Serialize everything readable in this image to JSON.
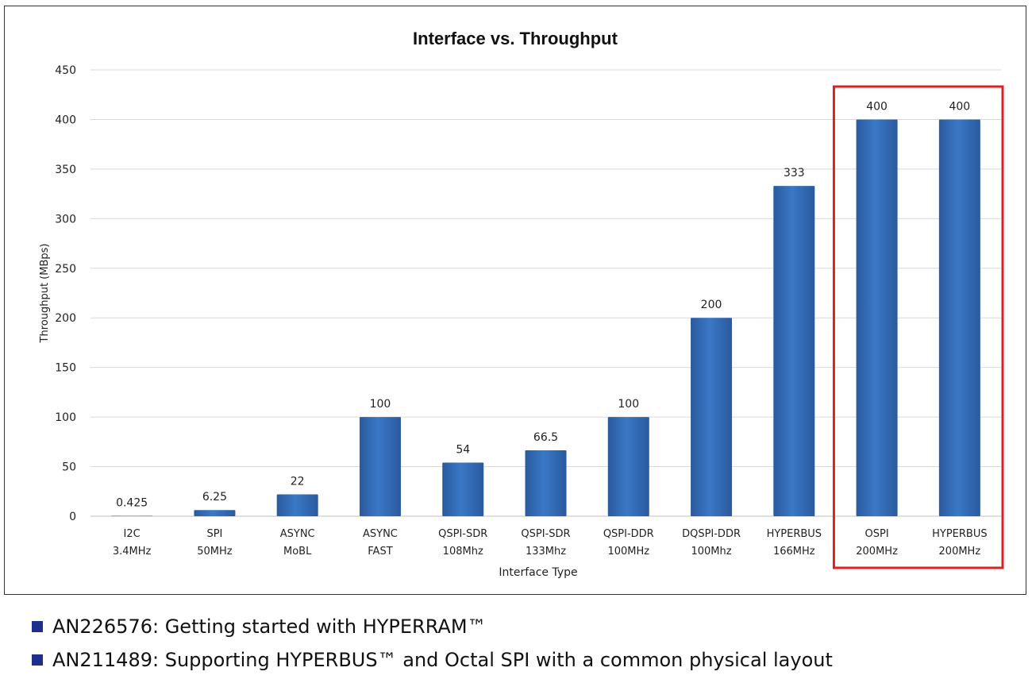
{
  "chart_data": {
    "type": "bar",
    "title": "Interface vs. Throughput",
    "xlabel": "Interface Type",
    "ylabel": "Throughput (MBps)",
    "ylim": [
      0,
      450
    ],
    "yticks": [
      0,
      50,
      100,
      150,
      200,
      250,
      300,
      350,
      400,
      450
    ],
    "grid": true,
    "categories": [
      [
        "I2C",
        "3.4MHz"
      ],
      [
        "SPI",
        "50MHz"
      ],
      [
        "ASYNC",
        "MoBL"
      ],
      [
        "ASYNC",
        "FAST"
      ],
      [
        "QSPI-SDR",
        "108Mhz"
      ],
      [
        "QSPI-SDR",
        "133Mhz"
      ],
      [
        "QSPI-DDR",
        "100MHz"
      ],
      [
        "DQSPI-DDR",
        "100Mhz"
      ],
      [
        "HYPERBUS",
        "166MHz"
      ],
      [
        "OSPI",
        "200MHz"
      ],
      [
        "HYPERBUS",
        "200MHz"
      ]
    ],
    "values": [
      0.425,
      6.25,
      22,
      100,
      54,
      66.5,
      100,
      200,
      333,
      400,
      400
    ],
    "data_labels": [
      "0.425",
      "6.25",
      "22",
      "100",
      "54",
      "66.5",
      "100",
      "200",
      "333",
      "400",
      "400"
    ],
    "highlight_categories": [
      9,
      10
    ],
    "colors": {
      "bar": "#3a78c6",
      "bar_dark": "#2a5a9e",
      "highlight_border": "#e02020",
      "grid": "#d9d9d9"
    }
  },
  "references": [
    "AN226576: Getting started with HYPERRAM™",
    "AN211489: Supporting HYPERBUS™ and Octal SPI with a common physical layout"
  ]
}
